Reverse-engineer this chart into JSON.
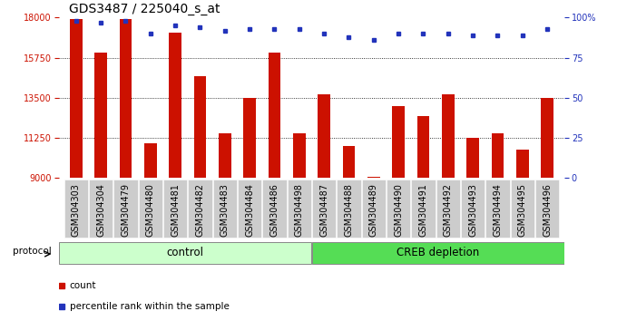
{
  "title": "GDS3487 / 225040_s_at",
  "samples": [
    "GSM304303",
    "GSM304304",
    "GSM304479",
    "GSM304480",
    "GSM304481",
    "GSM304482",
    "GSM304483",
    "GSM304484",
    "GSM304486",
    "GSM304498",
    "GSM304487",
    "GSM304488",
    "GSM304489",
    "GSM304490",
    "GSM304491",
    "GSM304492",
    "GSM304493",
    "GSM304494",
    "GSM304495",
    "GSM304496"
  ],
  "counts": [
    17920,
    16050,
    17900,
    10950,
    17150,
    14700,
    11500,
    13500,
    16050,
    11500,
    13700,
    10800,
    9100,
    13050,
    12500,
    13700,
    11250,
    11500,
    10600,
    13500
  ],
  "percentiles": [
    98,
    97,
    98,
    90,
    95,
    94,
    92,
    93,
    93,
    93,
    90,
    88,
    86,
    90,
    90,
    90,
    89,
    89,
    89,
    93
  ],
  "bar_color": "#CC1100",
  "dot_color": "#2233BB",
  "ymin": 9000,
  "ymax": 18000,
  "yticks_left": [
    9000,
    11250,
    13500,
    15750,
    18000
  ],
  "yticks_right": [
    0,
    25,
    50,
    75,
    100
  ],
  "control_color": "#ccffcc",
  "creb_color": "#55dd55",
  "bg_color": "#cccccc",
  "title_fontsize": 10,
  "tick_fontsize": 7,
  "bar_width": 0.5,
  "n_control": 10,
  "n_creb": 10
}
